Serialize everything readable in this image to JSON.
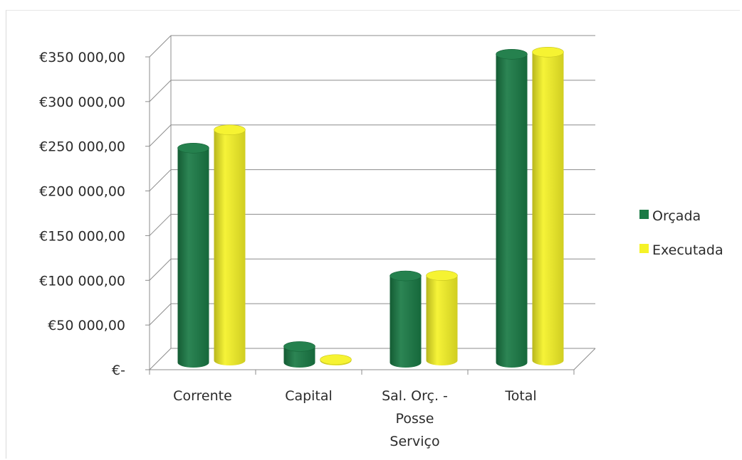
{
  "chart_data": {
    "type": "bar",
    "style": "3d-cylinder",
    "categories": [
      [
        "Corrente"
      ],
      [
        "Capital"
      ],
      [
        "Sal. Orç. -",
        "Posse",
        "Serviço"
      ],
      [
        "Total"
      ]
    ],
    "series": [
      {
        "name": "Orçada",
        "color": "#1a7a45",
        "values": [
          240000,
          18000,
          97000,
          345000
        ]
      },
      {
        "name": "Executada",
        "color": "#f5f227",
        "values": [
          258000,
          1000,
          95000,
          345000
        ]
      }
    ],
    "y_tick_labels": [
      "€-",
      "€50 000,00",
      "€100 000,00",
      "€150 000,00",
      "€200 000,00",
      "€250 000,00",
      "€300 000,00",
      "€350 000,00"
    ],
    "ylim": [
      0,
      350000
    ],
    "grid": true,
    "legend_position": "right",
    "title": "",
    "xlabel": "",
    "ylabel": ""
  }
}
